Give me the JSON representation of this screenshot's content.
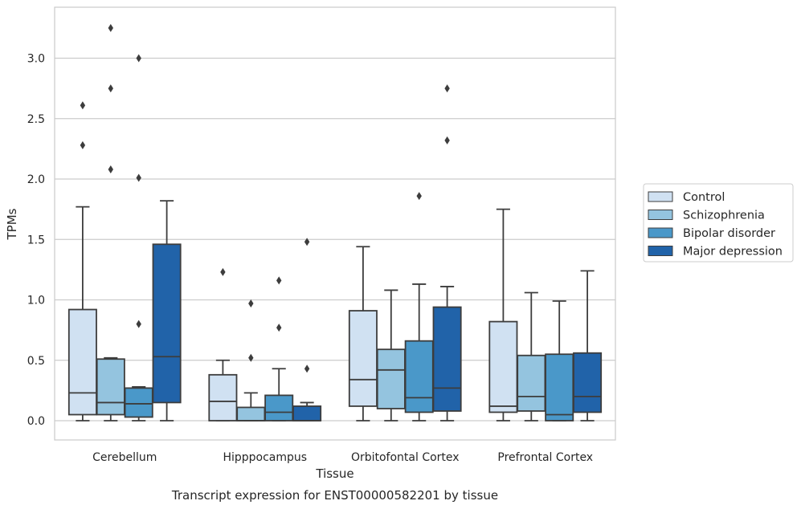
{
  "chart_data": {
    "type": "box",
    "title": "",
    "caption": "Transcript expression for ENST00000582201 by tissue",
    "xlabel": "Tissue",
    "ylabel": "TPMs",
    "ylim": [
      -0.16,
      3.42
    ],
    "yticks": [
      "0.0",
      "0.5",
      "1.0",
      "1.5",
      "2.0",
      "2.5",
      "3.0"
    ],
    "grid": "horizontal",
    "legend_position": "right",
    "categories": [
      "Cerebellum",
      "Hipppocampus",
      "Orbitofontal Cortex",
      "Prefrontal Cortex"
    ],
    "series": [
      {
        "name": "Control",
        "color": "#d0e1f2",
        "boxes": [
          {
            "whislo": 0.0,
            "q1": 0.05,
            "med": 0.23,
            "q3": 0.92,
            "whishi": 1.77,
            "fliers": [
              2.28,
              2.61
            ]
          },
          {
            "whislo": 0.0,
            "q1": 0.0,
            "med": 0.16,
            "q3": 0.38,
            "whishi": 0.5,
            "fliers": [
              1.23
            ]
          },
          {
            "whislo": 0.0,
            "q1": 0.12,
            "med": 0.34,
            "q3": 0.91,
            "whishi": 1.44,
            "fliers": []
          },
          {
            "whislo": 0.0,
            "q1": 0.07,
            "med": 0.12,
            "q3": 0.82,
            "whishi": 1.75,
            "fliers": []
          }
        ]
      },
      {
        "name": "Schizophrenia",
        "color": "#94c4df",
        "boxes": [
          {
            "whislo": 0.0,
            "q1": 0.05,
            "med": 0.15,
            "q3": 0.51,
            "whishi": 0.52,
            "fliers": [
              2.08,
              2.75,
              3.25
            ]
          },
          {
            "whislo": 0.0,
            "q1": 0.0,
            "med": 0.0,
            "q3": 0.11,
            "whishi": 0.23,
            "fliers": [
              0.52,
              0.97
            ]
          },
          {
            "whislo": 0.0,
            "q1": 0.1,
            "med": 0.42,
            "q3": 0.59,
            "whishi": 1.08,
            "fliers": []
          },
          {
            "whislo": 0.0,
            "q1": 0.08,
            "med": 0.2,
            "q3": 0.54,
            "whishi": 1.06,
            "fliers": []
          }
        ]
      },
      {
        "name": "Bipolar disorder",
        "color": "#4a98c9",
        "boxes": [
          {
            "whislo": 0.0,
            "q1": 0.03,
            "med": 0.14,
            "q3": 0.27,
            "whishi": 0.28,
            "fliers": [
              0.8,
              2.01,
              3.0
            ]
          },
          {
            "whislo": 0.0,
            "q1": 0.0,
            "med": 0.07,
            "q3": 0.21,
            "whishi": 0.43,
            "fliers": [
              0.77,
              1.16
            ]
          },
          {
            "whislo": 0.0,
            "q1": 0.07,
            "med": 0.19,
            "q3": 0.66,
            "whishi": 1.13,
            "fliers": [
              1.86
            ]
          },
          {
            "whislo": 0.0,
            "q1": 0.0,
            "med": 0.05,
            "q3": 0.55,
            "whishi": 0.99,
            "fliers": []
          }
        ]
      },
      {
        "name": "Major depression",
        "color": "#2163a9",
        "boxes": [
          {
            "whislo": 0.0,
            "q1": 0.15,
            "med": 0.53,
            "q3": 1.46,
            "whishi": 1.82,
            "fliers": []
          },
          {
            "whislo": 0.0,
            "q1": 0.0,
            "med": 0.0,
            "q3": 0.12,
            "whishi": 0.15,
            "fliers": [
              0.43,
              1.48
            ]
          },
          {
            "whislo": 0.0,
            "q1": 0.08,
            "med": 0.27,
            "q3": 0.94,
            "whishi": 1.11,
            "fliers": [
              2.32,
              2.75
            ]
          },
          {
            "whislo": 0.0,
            "q1": 0.07,
            "med": 0.2,
            "q3": 0.56,
            "whishi": 1.24,
            "fliers": []
          }
        ]
      }
    ]
  }
}
